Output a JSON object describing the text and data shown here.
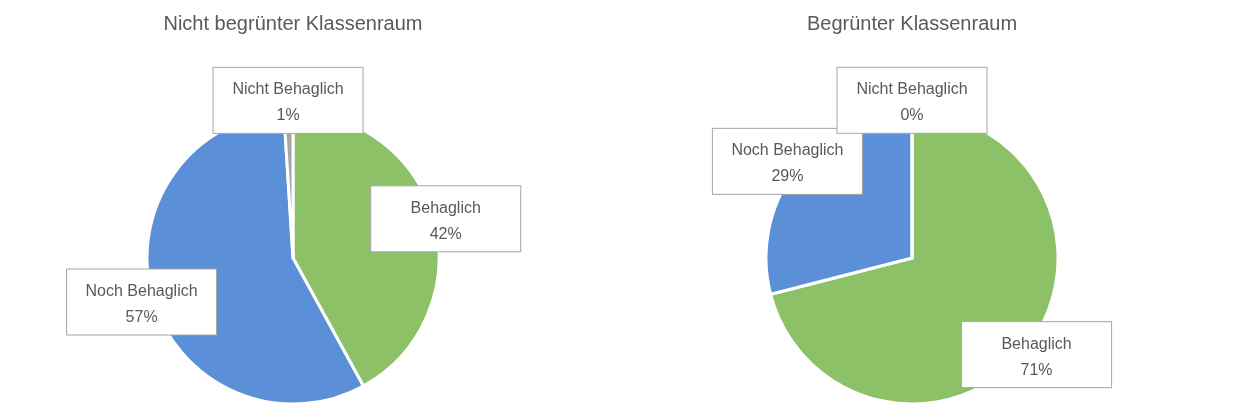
{
  "chart_data": [
    {
      "type": "pie",
      "title": "Nicht begrünter Klassenraum",
      "categories": [
        "Behaglich",
        "Noch Behaglich",
        "Nicht Behaglich"
      ],
      "values": [
        42,
        57,
        1
      ],
      "colors": [
        "#8cc168",
        "#5b8fd7",
        "#a5a5a5"
      ],
      "value_labels": [
        "42%",
        "57%",
        "1%"
      ],
      "legend": false
    },
    {
      "type": "pie",
      "title": "Begrünter Klassenraum",
      "categories": [
        "Behaglich",
        "Noch Behaglich",
        "Nicht Behaglich"
      ],
      "values": [
        71,
        29,
        0
      ],
      "colors": [
        "#8cc168",
        "#5b8fd7",
        "#a5a5a5"
      ],
      "value_labels": [
        "71%",
        "29%",
        "0%"
      ],
      "legend": false
    }
  ]
}
